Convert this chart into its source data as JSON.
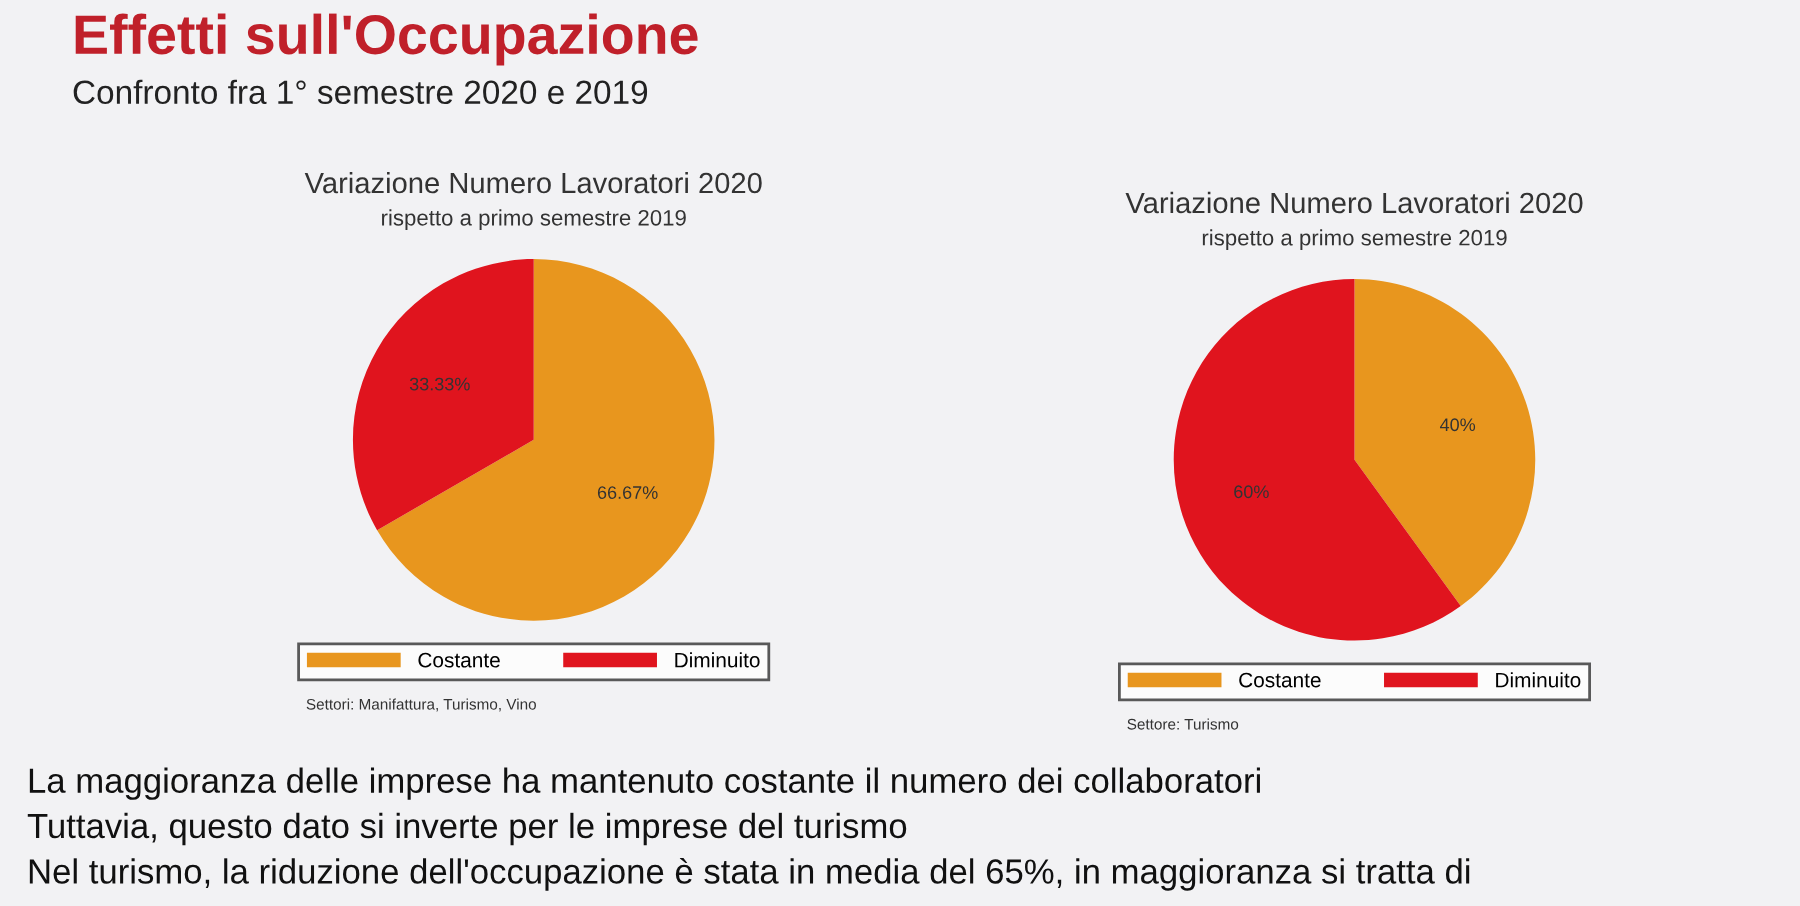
{
  "chart_data": [
    {
      "type": "other",
      "title": "Effetti sull'Occupazione",
      "subtitle": "Confronto fra 1° semestre 2020 e 2019",
      "annotations": [
        "La maggioranza delle imprese ha mantenuto costante il numero dei collaboratori",
        "Tuttavia, questo dato si inverte per le imprese del turismo",
        "Nel turismo, la riduzione dell'occupazione è stata in media del 65%, in maggioranza si tratta di"
      ]
    },
    {
      "type": "pie",
      "title": "Variazione Numero Lavoratori 2020",
      "subtitle": "rispetto a primo semestre 2019",
      "categories": [
        "Costante",
        "Diminuito"
      ],
      "values": [
        66.67,
        33.33
      ],
      "colors": [
        "#e8961e",
        "#e0141e"
      ],
      "value_labels": [
        "66.67%",
        "33.33%"
      ],
      "legend": "bottom",
      "annotations": [
        "Settori: Manifattura, Turismo, Vino"
      ]
    },
    {
      "type": "pie",
      "title": "Variazione Numero Lavoratori 2020",
      "subtitle": "rispetto a primo semestre 2019",
      "categories": [
        "Costante",
        "Diminuito"
      ],
      "values": [
        40,
        60
      ],
      "colors": [
        "#e8961e",
        "#e0141e"
      ],
      "value_labels": [
        "40%",
        "60%"
      ],
      "legend": "bottom",
      "annotations": [
        "Settore: Turismo"
      ]
    }
  ]
}
